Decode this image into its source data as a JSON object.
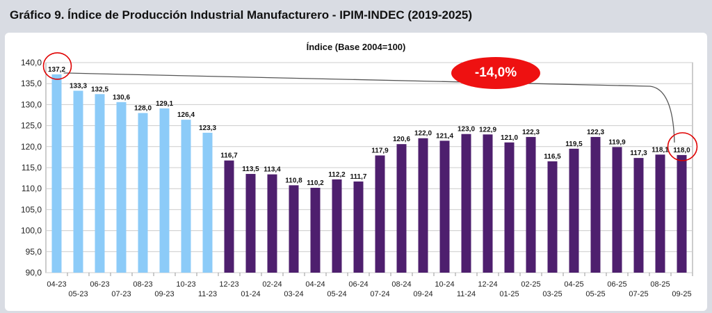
{
  "header": {
    "title": "Gráfico 9. Índice de Producción Industrial Manufacturero - IPIM-INDEC (2019-2025)"
  },
  "annotation": {
    "change_label": "-14,0%"
  },
  "colors": {
    "highlight": "#8ccbf8",
    "main": "#4e1f6e",
    "badge": "#ee1111",
    "grid": "#cccccc"
  },
  "chart_data": {
    "type": "bar",
    "title": "Índice (Base 2004=100)",
    "categories": [
      "04-23",
      "05-23",
      "06-23",
      "07-23",
      "08-23",
      "09-23",
      "10-23",
      "11-23",
      "12-23",
      "01-24",
      "02-24",
      "03-24",
      "04-24",
      "05-24",
      "06-24",
      "07-24",
      "08-24",
      "09-24",
      "10-24",
      "11-24",
      "12-24",
      "01-25",
      "02-25",
      "03-25",
      "04-25",
      "05-25",
      "06-25",
      "07-25",
      "08-25",
      "09-25"
    ],
    "values": [
      137.2,
      133.3,
      132.5,
      130.6,
      128.0,
      129.1,
      126.4,
      123.3,
      116.7,
      113.5,
      113.4,
      110.8,
      110.2,
      112.2,
      111.7,
      117.9,
      120.6,
      122.0,
      121.4,
      123.0,
      122.9,
      121.0,
      122.3,
      116.5,
      119.5,
      122.3,
      119.9,
      117.3,
      118.1,
      118.0
    ],
    "value_labels": [
      "137,2",
      "133,3",
      "132,5",
      "130,6",
      "128,0",
      "129,1",
      "126,4",
      "123,3",
      "116,7",
      "113,5",
      "113,4",
      "110,8",
      "110,2",
      "112,2",
      "111,7",
      "117,9",
      "120,6",
      "122,0",
      "121,4",
      "123,0",
      "122,9",
      "121,0",
      "122,3",
      "116,5",
      "119,5",
      "122,3",
      "119,9",
      "117,3",
      "118,1",
      "118,0"
    ],
    "highlight_count": 8,
    "ylim": [
      90,
      140
    ],
    "yticks": [
      90,
      95,
      100,
      105,
      110,
      115,
      120,
      125,
      130,
      135,
      140
    ],
    "ytick_labels": [
      "90,0",
      "95,0",
      "100,0",
      "105,0",
      "110,0",
      "115,0",
      "120,0",
      "125,0",
      "130,0",
      "135,0",
      "140,0"
    ],
    "grid": true,
    "xlabel": "",
    "ylabel": ""
  }
}
